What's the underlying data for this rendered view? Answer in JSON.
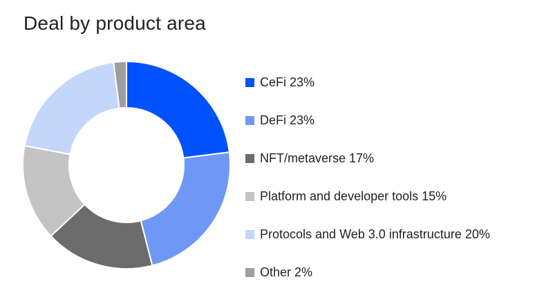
{
  "chart_data": {
    "type": "pie",
    "title": "Deal by product area",
    "donut": true,
    "legend_position": "right",
    "slices": [
      {
        "label": "CeFi 23%",
        "value": 23,
        "color": "#0052ff"
      },
      {
        "label": "DeFi 23%",
        "value": 23,
        "color": "#6f98f6"
      },
      {
        "label": "NFT/metaverse 17%",
        "value": 17,
        "color": "#6c6c6c"
      },
      {
        "label": "Platform and developer tools 15%",
        "value": 15,
        "color": "#c4c4c4"
      },
      {
        "label": "Protocols and Web 3.0 infrastructure 20%",
        "value": 20,
        "color": "#c5d6fb"
      },
      {
        "label": "Other 2%",
        "value": 2,
        "color": "#9e9e9e"
      }
    ]
  }
}
